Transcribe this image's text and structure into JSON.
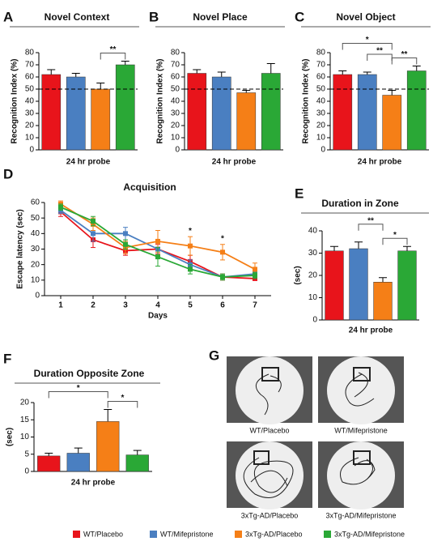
{
  "legend": [
    {
      "name": "WT/Placebo",
      "color": "#e8141b"
    },
    {
      "name": "WT/Mifepristone",
      "color": "#4a7fc1"
    },
    {
      "name": "3xTg-AD/Placebo",
      "color": "#f57f17"
    },
    {
      "name": "3xTg-AD/Mifepristone",
      "color": "#2aa836"
    }
  ],
  "chart_data": [
    {
      "type": "bar",
      "panel": "A",
      "title": "Novel Context",
      "ylabel": "Recognition Index (%)",
      "xlabel": "24 hr probe",
      "values": [
        62,
        60,
        50,
        70
      ],
      "errors": [
        4,
        3,
        5,
        3
      ],
      "ylim": [
        0,
        80
      ],
      "yticks": [
        0,
        10,
        20,
        30,
        40,
        50,
        60,
        70,
        80
      ],
      "reference": 50,
      "annotations": [
        {
          "pair": [
            2,
            3
          ],
          "text": "**"
        }
      ]
    },
    {
      "type": "bar",
      "panel": "B",
      "title": "Novel Place",
      "ylabel": "Recognition Index (%)",
      "xlabel": "24 hr probe",
      "values": [
        63,
        60,
        47,
        63
      ],
      "errors": [
        3,
        4,
        2,
        8
      ],
      "ylim": [
        0,
        80
      ],
      "yticks": [
        0,
        10,
        20,
        30,
        40,
        50,
        60,
        70,
        80
      ],
      "reference": 50,
      "annotations": []
    },
    {
      "type": "bar",
      "panel": "C",
      "title": "Novel Object",
      "ylabel": "Recognition Index (%)",
      "xlabel": "24 hr probe",
      "values": [
        62,
        62,
        45,
        65
      ],
      "errors": [
        3,
        2,
        4,
        4
      ],
      "ylim": [
        0,
        80
      ],
      "yticks": [
        0,
        10,
        20,
        30,
        40,
        50,
        60,
        70,
        80
      ],
      "reference": 50,
      "annotations": [
        {
          "pair": [
            2,
            3
          ],
          "text": "**"
        },
        {
          "pair": [
            1,
            2
          ],
          "text": "**"
        },
        {
          "pair": [
            0,
            2
          ],
          "text": "*"
        }
      ]
    },
    {
      "type": "line",
      "panel": "D",
      "title": "Acquisition",
      "ylabel": "Escape latency (sec)",
      "xlabel": "Days",
      "x": [
        1,
        2,
        3,
        4,
        5,
        6,
        7
      ],
      "xlim": [
        0.5,
        7.5
      ],
      "xticks": [
        1,
        2,
        3,
        4,
        5,
        6,
        7
      ],
      "ylim": [
        0,
        60
      ],
      "yticks": [
        0,
        10,
        20,
        30,
        40,
        50,
        60
      ],
      "series": [
        {
          "values": [
            54,
            36,
            29,
            30,
            22,
            12,
            11
          ],
          "errors": [
            3,
            5,
            3,
            3,
            4,
            2,
            1
          ]
        },
        {
          "values": [
            55,
            40,
            40,
            30,
            20,
            12,
            14
          ],
          "errors": [
            2,
            5,
            4,
            6,
            3,
            1,
            2
          ]
        },
        {
          "values": [
            59,
            46,
            31,
            35,
            32,
            28,
            17
          ],
          "errors": [
            2,
            4,
            4,
            7,
            6,
            5,
            4
          ]
        },
        {
          "values": [
            57,
            48,
            33,
            25,
            17,
            12,
            13
          ],
          "errors": [
            2,
            3,
            3,
            6,
            3,
            2,
            2
          ]
        }
      ],
      "annotations": [
        {
          "x": 5,
          "text": "*"
        },
        {
          "x": 6,
          "text": "*"
        }
      ]
    },
    {
      "type": "bar",
      "panel": "E",
      "title": "Duration in Zone",
      "ylabel": "(sec)",
      "xlabel": "24 hr probe",
      "values": [
        31,
        32,
        17,
        31
      ],
      "errors": [
        2,
        3,
        2,
        2
      ],
      "ylim": [
        0,
        40
      ],
      "yticks": [
        0,
        10,
        20,
        30,
        40
      ],
      "annotations": [
        {
          "pair": [
            2,
            3
          ],
          "text": "*"
        },
        {
          "pair": [
            1,
            2
          ],
          "text": "**"
        }
      ]
    },
    {
      "type": "bar",
      "panel": "F",
      "title": "Duration Opposite Zone",
      "ylabel": "(sec)",
      "xlabel": "24 hr probe",
      "values": [
        4.5,
        5.3,
        14.5,
        4.8
      ],
      "errors": [
        0.8,
        1.5,
        3.5,
        1.3
      ],
      "ylim": [
        0,
        20
      ],
      "yticks": [
        0,
        5,
        10,
        15,
        20
      ],
      "annotations": [
        {
          "pair": [
            2,
            3
          ],
          "text": "*"
        },
        {
          "pair": [
            0,
            2
          ],
          "text": "*"
        }
      ]
    }
  ],
  "images": {
    "panel": "G",
    "captions": [
      "WT/Placebo",
      "WT/Mifepristone",
      "3xTg-AD/Placebo",
      "3xTg-AD/Mifepristone"
    ]
  }
}
